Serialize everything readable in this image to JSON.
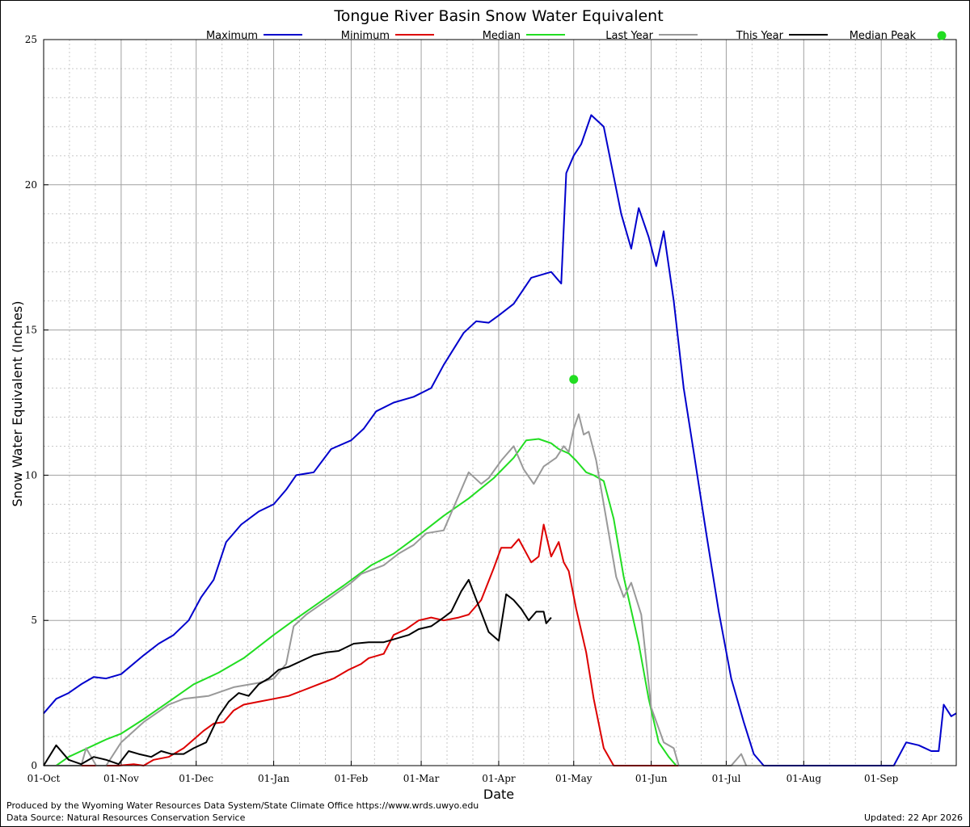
{
  "chart_data": {
    "type": "line",
    "title": "Tongue River Basin Snow Water Equivalent",
    "xlabel": "Date",
    "ylabel": "Snow Water Equivalent (Inches)",
    "ylim": [
      0,
      25
    ],
    "yticks": [
      0,
      5,
      10,
      15,
      20,
      25
    ],
    "x_tick_labels": [
      "01-Oct",
      "01-Nov",
      "01-Dec",
      "01-Jan",
      "01-Feb",
      "01-Mar",
      "01-Apr",
      "01-May",
      "01-Jun",
      "01-Jul",
      "01-Aug",
      "01-Sep"
    ],
    "x_tick_days": [
      0,
      31,
      61,
      92,
      123,
      151,
      182,
      212,
      243,
      273,
      304,
      335
    ],
    "xlim_days": [
      0,
      365
    ],
    "grid": true,
    "legend_position": "top",
    "series": [
      {
        "name": "Maximum",
        "color": "#0000cc",
        "points": [
          [
            0,
            1.8
          ],
          [
            5,
            2.3
          ],
          [
            10,
            2.5
          ],
          [
            15,
            2.8
          ],
          [
            20,
            3.05
          ],
          [
            25,
            3.0
          ],
          [
            31,
            3.15
          ],
          [
            40,
            3.8
          ],
          [
            46,
            4.2
          ],
          [
            52,
            4.5
          ],
          [
            58,
            5.0
          ],
          [
            63,
            5.8
          ],
          [
            68,
            6.4
          ],
          [
            73,
            7.7
          ],
          [
            79,
            8.3
          ],
          [
            86,
            8.75
          ],
          [
            92,
            9.0
          ],
          [
            97,
            9.5
          ],
          [
            101,
            10.0
          ],
          [
            108,
            10.1
          ],
          [
            115,
            10.9
          ],
          [
            123,
            11.2
          ],
          [
            128,
            11.6
          ],
          [
            133,
            12.2
          ],
          [
            140,
            12.5
          ],
          [
            148,
            12.7
          ],
          [
            155,
            13.0
          ],
          [
            160,
            13.8
          ],
          [
            168,
            14.9
          ],
          [
            173,
            15.3
          ],
          [
            178,
            15.25
          ],
          [
            182,
            15.5
          ],
          [
            188,
            15.9
          ],
          [
            195,
            16.8
          ],
          [
            203,
            17.0
          ],
          [
            207,
            16.6
          ],
          [
            209,
            20.4
          ],
          [
            212,
            21.0
          ],
          [
            215,
            21.4
          ],
          [
            219,
            22.4
          ],
          [
            224,
            22.0
          ],
          [
            231,
            19.0
          ],
          [
            235,
            17.8
          ],
          [
            238,
            19.2
          ],
          [
            242,
            18.2
          ],
          [
            245,
            17.2
          ],
          [
            248,
            18.4
          ],
          [
            252,
            16.0
          ],
          [
            256,
            13.0
          ],
          [
            260,
            10.8
          ],
          [
            265,
            8.0
          ],
          [
            270,
            5.3
          ],
          [
            275,
            3.0
          ],
          [
            280,
            1.5
          ],
          [
            284,
            0.4
          ],
          [
            288,
            0.0
          ],
          [
            300,
            0.0
          ],
          [
            320,
            0.0
          ],
          [
            340,
            0.0
          ],
          [
            345,
            0.8
          ],
          [
            350,
            0.7
          ],
          [
            355,
            0.5
          ],
          [
            358,
            0.5
          ],
          [
            360,
            2.1
          ],
          [
            363,
            1.7
          ],
          [
            365,
            1.8
          ]
        ]
      },
      {
        "name": "Minimum",
        "color": "#dd0000",
        "points": [
          [
            0,
            0.0
          ],
          [
            30,
            0.0
          ],
          [
            36,
            0.05
          ],
          [
            40,
            0.0
          ],
          [
            44,
            0.2
          ],
          [
            50,
            0.3
          ],
          [
            56,
            0.6
          ],
          [
            60,
            0.9
          ],
          [
            64,
            1.2
          ],
          [
            68,
            1.45
          ],
          [
            72,
            1.5
          ],
          [
            76,
            1.9
          ],
          [
            80,
            2.1
          ],
          [
            86,
            2.2
          ],
          [
            92,
            2.3
          ],
          [
            98,
            2.4
          ],
          [
            104,
            2.6
          ],
          [
            110,
            2.8
          ],
          [
            116,
            3.0
          ],
          [
            122,
            3.3
          ],
          [
            127,
            3.5
          ],
          [
            130,
            3.7
          ],
          [
            136,
            3.85
          ],
          [
            140,
            4.5
          ],
          [
            145,
            4.7
          ],
          [
            150,
            5.0
          ],
          [
            155,
            5.1
          ],
          [
            160,
            5.0
          ],
          [
            166,
            5.1
          ],
          [
            170,
            5.2
          ],
          [
            175,
            5.7
          ],
          [
            180,
            6.8
          ],
          [
            183,
            7.5
          ],
          [
            187,
            7.5
          ],
          [
            190,
            7.8
          ],
          [
            195,
            7.0
          ],
          [
            198,
            7.2
          ],
          [
            200,
            8.3
          ],
          [
            203,
            7.2
          ],
          [
            206,
            7.7
          ],
          [
            208,
            7.0
          ],
          [
            210,
            6.7
          ],
          [
            213,
            5.4
          ],
          [
            217,
            3.9
          ],
          [
            220,
            2.3
          ],
          [
            224,
            0.6
          ],
          [
            228,
            0.0
          ],
          [
            260,
            0.0
          ]
        ]
      },
      {
        "name": "Median",
        "color": "#22dd22",
        "points": [
          [
            5,
            0.0
          ],
          [
            10,
            0.3
          ],
          [
            15,
            0.5
          ],
          [
            20,
            0.7
          ],
          [
            25,
            0.9
          ],
          [
            31,
            1.1
          ],
          [
            40,
            1.6
          ],
          [
            50,
            2.2
          ],
          [
            60,
            2.8
          ],
          [
            70,
            3.2
          ],
          [
            80,
            3.7
          ],
          [
            92,
            4.5
          ],
          [
            100,
            5.0
          ],
          [
            110,
            5.6
          ],
          [
            120,
            6.2
          ],
          [
            131,
            6.9
          ],
          [
            140,
            7.3
          ],
          [
            151,
            8.0
          ],
          [
            160,
            8.6
          ],
          [
            170,
            9.2
          ],
          [
            180,
            9.9
          ],
          [
            188,
            10.6
          ],
          [
            193,
            11.2
          ],
          [
            198,
            11.25
          ],
          [
            203,
            11.1
          ],
          [
            206,
            10.9
          ],
          [
            210,
            10.75
          ],
          [
            213,
            10.5
          ],
          [
            217,
            10.1
          ],
          [
            220,
            10.0
          ],
          [
            224,
            9.8
          ],
          [
            228,
            8.5
          ],
          [
            232,
            6.5
          ],
          [
            238,
            4.2
          ],
          [
            242,
            2.3
          ],
          [
            246,
            0.8
          ],
          [
            250,
            0.3
          ],
          [
            253,
            0.0
          ]
        ]
      },
      {
        "name": "Last Year",
        "color": "#999999",
        "points": [
          [
            0,
            0.0
          ],
          [
            15,
            0.0
          ],
          [
            17,
            0.6
          ],
          [
            21,
            0.0
          ],
          [
            25,
            0.0
          ],
          [
            31,
            0.8
          ],
          [
            40,
            1.5
          ],
          [
            45,
            1.8
          ],
          [
            50,
            2.1
          ],
          [
            56,
            2.3
          ],
          [
            66,
            2.4
          ],
          [
            76,
            2.7
          ],
          [
            86,
            2.85
          ],
          [
            92,
            3.0
          ],
          [
            97,
            3.5
          ],
          [
            100,
            4.8
          ],
          [
            105,
            5.2
          ],
          [
            115,
            5.8
          ],
          [
            123,
            6.3
          ],
          [
            127,
            6.6
          ],
          [
            130,
            6.7
          ],
          [
            136,
            6.9
          ],
          [
            142,
            7.3
          ],
          [
            148,
            7.6
          ],
          [
            153,
            8.0
          ],
          [
            160,
            8.1
          ],
          [
            166,
            9.3
          ],
          [
            170,
            10.1
          ],
          [
            175,
            9.7
          ],
          [
            178,
            9.9
          ],
          [
            183,
            10.5
          ],
          [
            188,
            11.0
          ],
          [
            192,
            10.2
          ],
          [
            196,
            9.7
          ],
          [
            200,
            10.3
          ],
          [
            205,
            10.6
          ],
          [
            208,
            11.0
          ],
          [
            210,
            10.8
          ],
          [
            212,
            11.6
          ],
          [
            214,
            12.1
          ],
          [
            216,
            11.4
          ],
          [
            218,
            11.5
          ],
          [
            221,
            10.5
          ],
          [
            225,
            8.5
          ],
          [
            229,
            6.5
          ],
          [
            232,
            5.8
          ],
          [
            235,
            6.3
          ],
          [
            239,
            5.2
          ],
          [
            243,
            2.0
          ],
          [
            248,
            0.8
          ],
          [
            252,
            0.6
          ],
          [
            254,
            0.0
          ],
          [
            275,
            0.0
          ],
          [
            279,
            0.4
          ],
          [
            281,
            0.0
          ]
        ]
      },
      {
        "name": "This Year",
        "color": "#000000",
        "points": [
          [
            0,
            0.0
          ],
          [
            5,
            0.7
          ],
          [
            10,
            0.2
          ],
          [
            15,
            0.05
          ],
          [
            20,
            0.3
          ],
          [
            25,
            0.2
          ],
          [
            30,
            0.05
          ],
          [
            34,
            0.5
          ],
          [
            38,
            0.4
          ],
          [
            43,
            0.3
          ],
          [
            47,
            0.5
          ],
          [
            51,
            0.4
          ],
          [
            56,
            0.4
          ],
          [
            60,
            0.6
          ],
          [
            65,
            0.8
          ],
          [
            70,
            1.7
          ],
          [
            74,
            2.2
          ],
          [
            78,
            2.5
          ],
          [
            82,
            2.4
          ],
          [
            86,
            2.8
          ],
          [
            90,
            3.0
          ],
          [
            94,
            3.3
          ],
          [
            98,
            3.4
          ],
          [
            103,
            3.6
          ],
          [
            108,
            3.8
          ],
          [
            113,
            3.9
          ],
          [
            118,
            3.95
          ],
          [
            124,
            4.2
          ],
          [
            130,
            4.25
          ],
          [
            136,
            4.25
          ],
          [
            142,
            4.4
          ],
          [
            146,
            4.5
          ],
          [
            150,
            4.7
          ],
          [
            155,
            4.8
          ],
          [
            160,
            5.1
          ],
          [
            163,
            5.3
          ],
          [
            167,
            6.0
          ],
          [
            170,
            6.4
          ],
          [
            174,
            5.5
          ],
          [
            178,
            4.6
          ],
          [
            182,
            4.3
          ],
          [
            185,
            5.9
          ],
          [
            188,
            5.7
          ],
          [
            191,
            5.4
          ],
          [
            194,
            5.0
          ],
          [
            197,
            5.3
          ],
          [
            200,
            5.3
          ],
          [
            201,
            4.9
          ],
          [
            203,
            5.1
          ]
        ]
      }
    ],
    "median_peak": {
      "name": "Median Peak",
      "day": 212,
      "value": 13.3,
      "color": "#22dd22"
    }
  },
  "footer": {
    "produced_by": "Produced by the Wyoming Water Resources Data System/State Climate Office https://www.wrds.uwyo.edu",
    "data_source": "Data Source: Natural Resources Conservation Service",
    "updated": "Updated: 22 Apr 2026"
  }
}
